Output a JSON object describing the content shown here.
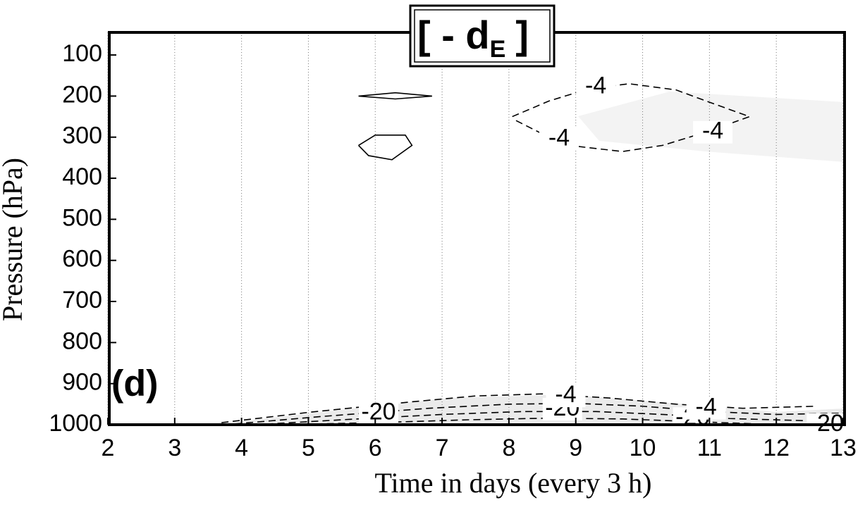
{
  "chart_data": {
    "type": "contour",
    "title": "[ - d",
    "title_subscript": "E",
    "title_close": "]",
    "panel_label": "(d)",
    "xlabel": "Time in days (every 3 h)",
    "ylabel": "Pressure (hPa)",
    "xlim": [
      2,
      13
    ],
    "ylim": [
      45,
      1000
    ],
    "y_reversed": true,
    "xticks": [
      2,
      3,
      4,
      5,
      6,
      7,
      8,
      9,
      10,
      11,
      12,
      13
    ],
    "yticks": [
      100,
      200,
      300,
      400,
      500,
      600,
      700,
      800,
      900,
      1000
    ],
    "grid": true,
    "contours": [
      {
        "dashed": false,
        "x": [
          5.75,
          6.3,
          6.85,
          6.3,
          5.75
        ],
        "y": [
          200,
          192,
          200,
          207,
          200
        ]
      },
      {
        "dashed": false,
        "x": [
          5.75,
          6.0,
          6.45,
          6.55,
          6.25,
          5.9,
          5.75
        ],
        "y": [
          320,
          295,
          295,
          320,
          355,
          345,
          320
        ]
      },
      {
        "dashed": true,
        "x": [
          8.05,
          8.6,
          9.2,
          9.8,
          10.5,
          11.0,
          11.6,
          11.0,
          10.3,
          9.7,
          9.0,
          8.5,
          8.05
        ],
        "y": [
          250,
          212,
          182,
          170,
          185,
          215,
          250,
          285,
          320,
          335,
          322,
          292,
          255
        ]
      },
      {
        "dashed": true,
        "x": [
          3.7,
          5.0,
          6.5,
          7.5,
          8.5,
          9.5,
          10.5,
          11.5,
          12.6
        ],
        "y": [
          995,
          970,
          945,
          930,
          925,
          935,
          950,
          960,
          955
        ]
      },
      {
        "dashed": true,
        "x": [
          3.9,
          5.2,
          6.8,
          8.0,
          9.0,
          10.0,
          11.0,
          12.0,
          13.0
        ],
        "y": [
          998,
          980,
          960,
          950,
          948,
          955,
          968,
          975,
          972
        ]
      },
      {
        "dashed": true,
        "x": [
          4.2,
          5.5,
          7.0,
          8.2,
          9.3,
          10.3,
          11.3,
          12.4
        ],
        "y": [
          1000,
          988,
          975,
          968,
          968,
          975,
          985,
          990
        ]
      },
      {
        "dashed": true,
        "x": [
          4.6,
          6.0,
          7.4,
          8.6,
          9.7,
          10.7,
          11.7
        ],
        "y": [
          1000,
          995,
          988,
          984,
          986,
          992,
          998
        ]
      }
    ],
    "contour_labels": [
      {
        "text": "-4",
        "x": 9.3,
        "y": 178
      },
      {
        "text": "-4",
        "x": 8.75,
        "y": 305
      },
      {
        "text": "-4",
        "x": 11.05,
        "y": 288
      },
      {
        "text": "-20",
        "x": 6.05,
        "y": 972
      },
      {
        "text": "-20",
        "x": 8.8,
        "y": 962
      },
      {
        "text": "-4",
        "x": 8.85,
        "y": 930
      },
      {
        "text": "-20",
        "x": 10.75,
        "y": 985
      },
      {
        "text": "-4",
        "x": 10.95,
        "y": 960
      },
      {
        "text": "-20",
        "x": 12.75,
        "y": 1000
      }
    ]
  }
}
